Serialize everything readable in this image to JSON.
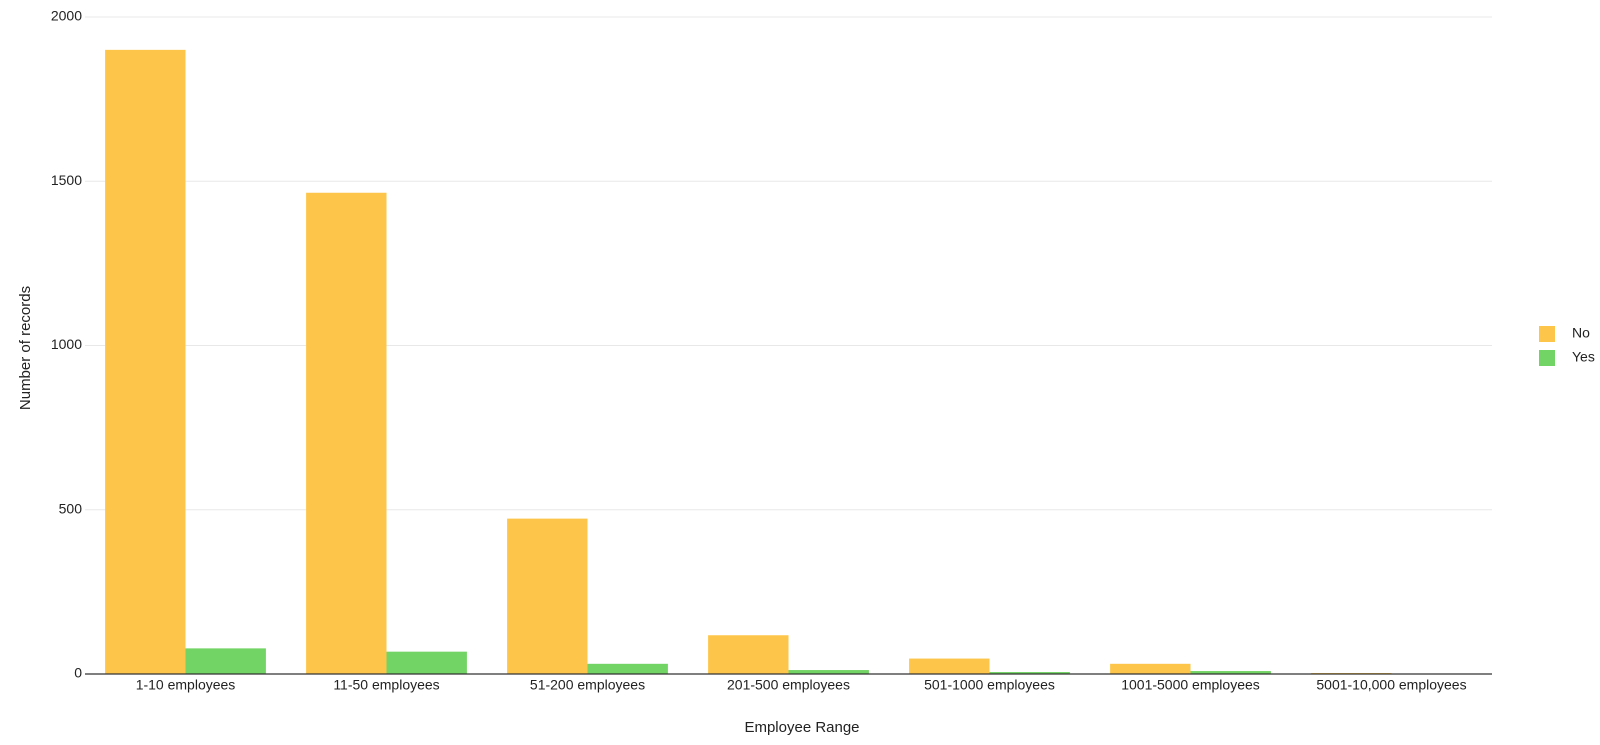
{
  "chart_data": {
    "type": "bar",
    "x_label": "Employee Range",
    "y_label": "Number of records",
    "categories": [
      "1-10 employees",
      "11-50 employees",
      "51-200 employees",
      "201-500 employees",
      "501-1000 employees",
      "1001-5000 employees",
      "5001-10,000 employees"
    ],
    "series": [
      {
        "name": "No",
        "color": "#fdc64b",
        "values": [
          1900,
          1465,
          473,
          118,
          47,
          31,
          3
        ]
      },
      {
        "name": "Yes",
        "color": "#72d464",
        "values": [
          78,
          68,
          31,
          12,
          6,
          9,
          1
        ]
      }
    ],
    "ylim": [
      0,
      2000
    ],
    "yticks": [
      0,
      500,
      1000,
      1500,
      2000
    ],
    "grid": true,
    "legend": "right"
  }
}
